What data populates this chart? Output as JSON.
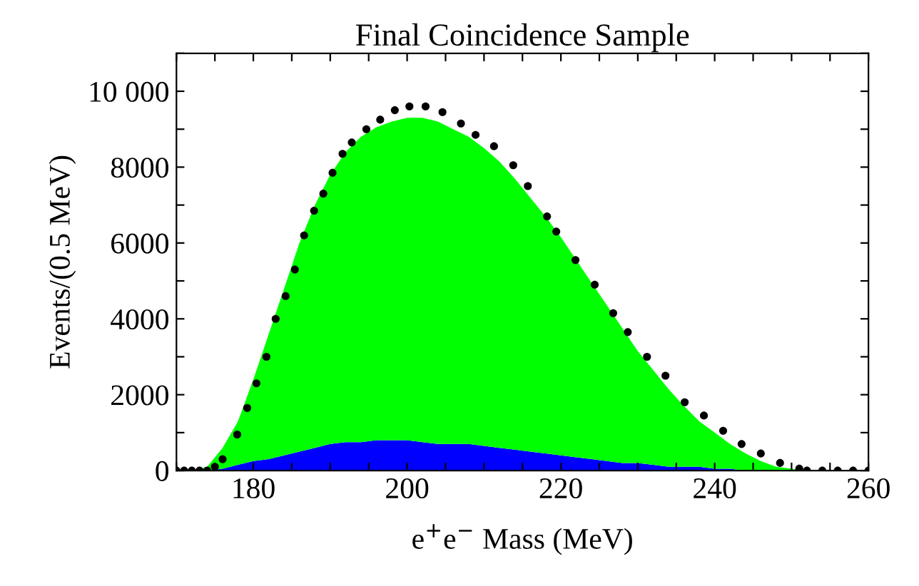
{
  "chart_data": {
    "type": "area",
    "title": "Final Coincidence Sample",
    "xlabel": "e$^{+}$e$^{−}$ Mass (MeV)",
    "ylabel": "Events/(0.5 MeV)",
    "stacked": true,
    "x": [
      170,
      172,
      174,
      176,
      178,
      180,
      182,
      184,
      186,
      188,
      190,
      192,
      194,
      196,
      198,
      200,
      202,
      204,
      206,
      208,
      210,
      212,
      214,
      216,
      218,
      220,
      222,
      224,
      226,
      228,
      230,
      232,
      234,
      236,
      238,
      240,
      242,
      244,
      246,
      248,
      250,
      252,
      254,
      256,
      258,
      260
    ],
    "series": [
      {
        "color": "#0000ff",
        "values": [
          0,
          0,
          0,
          50,
          150,
          250,
          300,
          400,
          500,
          600,
          700,
          750,
          750,
          800,
          800,
          800,
          750,
          700,
          700,
          700,
          650,
          600,
          550,
          500,
          450,
          400,
          350,
          300,
          250,
          200,
          200,
          150,
          100,
          100,
          100,
          50,
          50,
          0,
          0,
          0,
          0,
          0,
          0,
          0,
          0,
          0
        ]
      },
      {
        "color": "#00ff00",
        "values": [
          0,
          0,
          100,
          550,
          1150,
          2150,
          3300,
          4400,
          5500,
          6400,
          7100,
          7650,
          8050,
          8250,
          8400,
          8500,
          8550,
          8500,
          8300,
          8100,
          7850,
          7550,
          7150,
          6700,
          6250,
          5750,
          5200,
          4650,
          4100,
          3550,
          2950,
          2500,
          2050,
          1600,
          1200,
          950,
          650,
          450,
          250,
          100,
          50,
          0,
          0,
          0,
          0,
          0
        ]
      },
      {
        "type": "scatter",
        "color": "#000000",
        "marker": "circle",
        "x": [
          170,
          171,
          172,
          173,
          174,
          175,
          176,
          177.9,
          179.2,
          180.4,
          181.7,
          182.9,
          184.2,
          185.4,
          186.6,
          187.9,
          189.1,
          190.3,
          191.6,
          192.8,
          194.7,
          196.5,
          198.4,
          200.3,
          202.4,
          204.6,
          207,
          208.9,
          211.3,
          213.8,
          215.7,
          218.2,
          219.4,
          221.9,
          224.4,
          226.8,
          228.7,
          231.2,
          233.6,
          236.1,
          238.6,
          241.1,
          243.5,
          246,
          248.5,
          251,
          252,
          254,
          256,
          258,
          260
        ],
        "values": [
          0,
          0,
          0,
          0,
          0,
          100,
          300,
          950,
          1650,
          2300,
          3000,
          4000,
          4600,
          5300,
          6200,
          6850,
          7300,
          7850,
          8350,
          8650,
          9000,
          9250,
          9500,
          9600,
          9600,
          9450,
          9150,
          8850,
          8550,
          8050,
          7500,
          6700,
          6300,
          5550,
          4900,
          4150,
          3650,
          3000,
          2500,
          1800,
          1450,
          1050,
          700,
          450,
          200,
          50,
          0,
          0,
          0,
          0,
          0
        ]
      }
    ],
    "xlim": [
      170,
      260
    ],
    "ylim": [
      0,
      11000
    ],
    "xticks": [
      {
        "value": 170,
        "label": null
      },
      {
        "value": 175,
        "label": null
      },
      180,
      {
        "value": 185,
        "label": null
      },
      {
        "value": 190,
        "label": null
      },
      {
        "value": 195,
        "label": null
      },
      200,
      {
        "value": 205,
        "label": null
      },
      {
        "value": 210,
        "label": null
      },
      {
        "value": 215,
        "label": null
      },
      220,
      {
        "value": 225,
        "label": null
      },
      {
        "value": 230,
        "label": null
      },
      {
        "value": 235,
        "label": null
      },
      240,
      {
        "value": 245,
        "label": null
      },
      {
        "value": 250,
        "label": null
      },
      {
        "value": 255,
        "label": null
      },
      260
    ],
    "yticks": [
      0,
      {
        "value": 1000,
        "label": null
      },
      2000,
      {
        "value": 3000,
        "label": null
      },
      4000,
      {
        "value": 5000,
        "label": null
      },
      6000,
      {
        "value": 7000,
        "label": null
      },
      8000,
      {
        "value": 9000,
        "label": null
      },
      {
        "value": 10000,
        "label": "10 000"
      },
      {
        "value": 11000,
        "label": null
      }
    ],
    "grid": false
  }
}
